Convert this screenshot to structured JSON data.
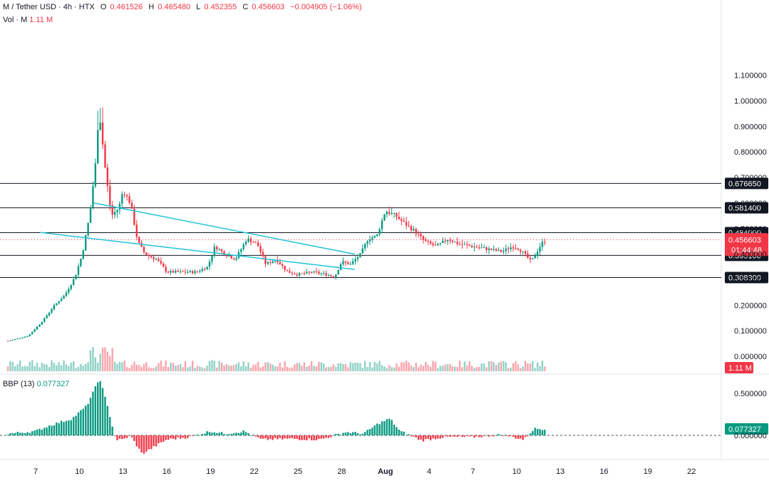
{
  "header": {
    "symbol": "M / Tether USD · 4h · HTX",
    "open_label": "O",
    "open": "0.461526",
    "high_label": "H",
    "high": "0.465480",
    "low_label": "L",
    "low": "0.452355",
    "close_label": "C",
    "close": "0.456603",
    "change": "−0.004905 (−1.06%)"
  },
  "volume_legend": {
    "label": "Vol · M",
    "value": "1.11 M"
  },
  "indicator_legend": {
    "label": "BBP (13)",
    "value": "0.077327"
  },
  "colors": {
    "up": "#089981",
    "down": "#f23645",
    "channel": "#22c3d8",
    "level": "#131722"
  },
  "chart_data": [
    {
      "type": "candlestick",
      "title": "M / Tether USD · 4h · HTX",
      "x_ticks": [
        "7",
        "10",
        "13",
        "16",
        "19",
        "22",
        "25",
        "28",
        "Aug",
        "4",
        "7",
        "10",
        "13",
        "16",
        "19",
        "22"
      ],
      "y_ticks": [
        "1.100000",
        "1.000000",
        "0.900000",
        "0.800000",
        "0.700000",
        "0.600000",
        "0.500000",
        "0.400000",
        "0.300000",
        "0.200000",
        "0.100000",
        "0.000000"
      ],
      "ylim": [
        0,
        1.1
      ],
      "horizontal_levels": [
        {
          "label": "0.676650",
          "value": 0.67665
        },
        {
          "label": "0.581400",
          "value": 0.5814
        },
        {
          "label": "0.484000",
          "value": 0.484
        },
        {
          "label": "0.395100",
          "value": 0.3951
        },
        {
          "label": "0.308300",
          "value": 0.3083
        }
      ],
      "current_price": {
        "label": "0.456603",
        "value": 0.456603,
        "countdown": "01:44:48"
      },
      "channel_lines": [
        {
          "name": "upper",
          "from": {
            "day": 4.0,
            "price": 0.6
          },
          "to": {
            "day": 21.9,
            "price": 0.4
          }
        },
        {
          "name": "lower",
          "from": {
            "day": 0.3,
            "price": 0.485
          },
          "to": {
            "day": 21.9,
            "price": 0.34
          }
        }
      ],
      "price_path": [
        {
          "day": -1.9,
          "price": 0.06
        },
        {
          "day": -0.5,
          "price": 0.08
        },
        {
          "day": 0.5,
          "price": 0.14
        },
        {
          "day": 1.3,
          "price": 0.2
        },
        {
          "day": 2.0,
          "price": 0.24
        },
        {
          "day": 2.7,
          "price": 0.31
        },
        {
          "day": 3.2,
          "price": 0.4
        },
        {
          "day": 3.7,
          "price": 0.55
        },
        {
          "day": 4.1,
          "price": 0.75
        },
        {
          "day": 4.35,
          "price": 0.97
        },
        {
          "day": 4.8,
          "price": 0.72
        },
        {
          "day": 5.2,
          "price": 0.55
        },
        {
          "day": 5.7,
          "price": 0.58
        },
        {
          "day": 6.0,
          "price": 0.65
        },
        {
          "day": 6.5,
          "price": 0.6
        },
        {
          "day": 7.0,
          "price": 0.45
        },
        {
          "day": 7.5,
          "price": 0.4
        },
        {
          "day": 8.3,
          "price": 0.38
        },
        {
          "day": 9.0,
          "price": 0.33
        },
        {
          "day": 10.0,
          "price": 0.33
        },
        {
          "day": 11.0,
          "price": 0.33
        },
        {
          "day": 11.8,
          "price": 0.35
        },
        {
          "day": 12.3,
          "price": 0.43
        },
        {
          "day": 13.0,
          "price": 0.4
        },
        {
          "day": 13.7,
          "price": 0.38
        },
        {
          "day": 14.5,
          "price": 0.46
        },
        {
          "day": 15.2,
          "price": 0.44
        },
        {
          "day": 15.8,
          "price": 0.36
        },
        {
          "day": 16.5,
          "price": 0.38
        },
        {
          "day": 17.3,
          "price": 0.33
        },
        {
          "day": 18.0,
          "price": 0.32
        },
        {
          "day": 19.0,
          "price": 0.33
        },
        {
          "day": 20.0,
          "price": 0.32
        },
        {
          "day": 20.5,
          "price": 0.31
        },
        {
          "day": 21.0,
          "price": 0.37
        },
        {
          "day": 21.6,
          "price": 0.36
        },
        {
          "day": 22.3,
          "price": 0.4
        },
        {
          "day": 22.8,
          "price": 0.46
        },
        {
          "day": 23.4,
          "price": 0.47
        },
        {
          "day": 24.0,
          "price": 0.57
        },
        {
          "day": 24.7,
          "price": 0.55
        },
        {
          "day": 25.3,
          "price": 0.52
        },
        {
          "day": 26.0,
          "price": 0.49
        },
        {
          "day": 26.7,
          "price": 0.45
        },
        {
          "day": 27.5,
          "price": 0.43
        },
        {
          "day": 28.3,
          "price": 0.46
        },
        {
          "day": 29.0,
          "price": 0.44
        },
        {
          "day": 30.0,
          "price": 0.43
        },
        {
          "day": 31.0,
          "price": 0.42
        },
        {
          "day": 32.0,
          "price": 0.41
        },
        {
          "day": 32.7,
          "price": 0.43
        },
        {
          "day": 33.2,
          "price": 0.42
        },
        {
          "day": 33.7,
          "price": 0.39
        },
        {
          "day": 34.0,
          "price": 0.37
        },
        {
          "day": 34.3,
          "price": 0.4
        },
        {
          "day": 34.7,
          "price": 0.44
        },
        {
          "day": 35.0,
          "price": 0.457
        }
      ],
      "volume_bars_peak_day": 4.4,
      "series": [
        {
          "name": "BBP (13)",
          "last_value": 0.077327
        }
      ],
      "indicator_y_ticks": [
        "0.500000",
        "0.000000"
      ],
      "indicator_path": [
        {
          "day": -1.9,
          "value": 0.02
        },
        {
          "day": 0.0,
          "value": 0.05
        },
        {
          "day": 1.0,
          "value": 0.12
        },
        {
          "day": 2.5,
          "value": 0.2
        },
        {
          "day": 3.5,
          "value": 0.35
        },
        {
          "day": 4.4,
          "value": 0.68
        },
        {
          "day": 5.0,
          "value": 0.3
        },
        {
          "day": 5.5,
          "value": -0.05
        },
        {
          "day": 6.0,
          "value": -0.05
        },
        {
          "day": 6.5,
          "value": 0.0
        },
        {
          "day": 7.3,
          "value": -0.22
        },
        {
          "day": 8.0,
          "value": -0.15
        },
        {
          "day": 9.0,
          "value": -0.05
        },
        {
          "day": 10.5,
          "value": -0.02
        },
        {
          "day": 12.0,
          "value": 0.05
        },
        {
          "day": 13.0,
          "value": 0.02
        },
        {
          "day": 14.3,
          "value": 0.05
        },
        {
          "day": 15.5,
          "value": -0.05
        },
        {
          "day": 17.5,
          "value": -0.04
        },
        {
          "day": 19.5,
          "value": -0.05
        },
        {
          "day": 21.3,
          "value": 0.04
        },
        {
          "day": 22.5,
          "value": 0.02
        },
        {
          "day": 23.5,
          "value": 0.14
        },
        {
          "day": 24.3,
          "value": 0.2
        },
        {
          "day": 25.0,
          "value": 0.05
        },
        {
          "day": 26.5,
          "value": -0.06
        },
        {
          "day": 28.0,
          "value": -0.02
        },
        {
          "day": 30.0,
          "value": -0.02
        },
        {
          "day": 32.0,
          "value": 0.01
        },
        {
          "day": 33.5,
          "value": -0.05
        },
        {
          "day": 34.2,
          "value": 0.08
        },
        {
          "day": 35.0,
          "value": 0.077
        }
      ]
    }
  ]
}
